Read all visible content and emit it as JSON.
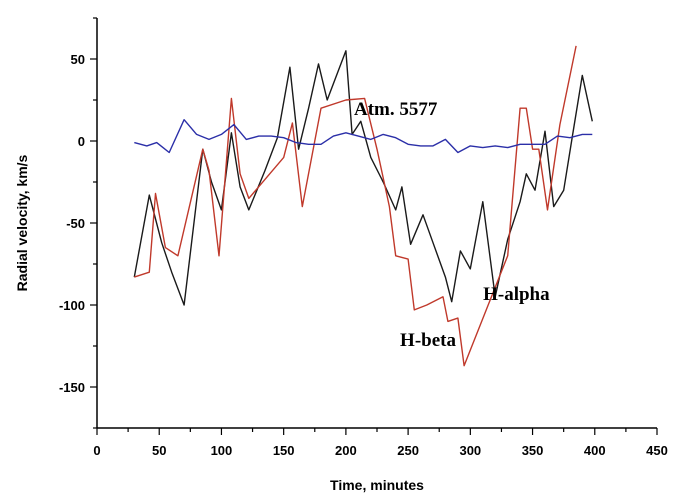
{
  "chart_data": {
    "type": "line",
    "title": "",
    "xlabel": "Time, minutes",
    "ylabel": "Radial velocity, km/s",
    "xlim": [
      0,
      450
    ],
    "ylim": [
      -175,
      75
    ],
    "xticks": [
      0,
      50,
      100,
      150,
      200,
      250,
      300,
      350,
      400,
      450
    ],
    "yticks": [
      -150,
      -100,
      -50,
      0,
      50
    ],
    "grid": false,
    "annotations": [
      {
        "text": "Atm. 5577",
        "x": 240,
        "y": 16
      },
      {
        "text": "H-alpha",
        "x": 337,
        "y": -97
      },
      {
        "text": "H-beta",
        "x": 266,
        "y": -125
      }
    ],
    "series": [
      {
        "name": "H-alpha",
        "color": "#1a1a1a",
        "x": [
          30,
          42,
          52,
          60,
          70,
          85,
          92,
          100,
          108,
          115,
          122,
          135,
          145,
          155,
          162,
          170,
          178,
          185,
          200,
          205,
          212,
          220,
          230,
          240,
          245,
          252,
          262,
          270,
          280,
          285,
          292,
          300,
          310,
          320,
          330,
          340,
          345,
          352,
          360,
          367,
          375,
          382,
          390,
          398
        ],
        "y": [
          -83,
          -33,
          -62,
          -80,
          -100,
          -5,
          -25,
          -42,
          5,
          -28,
          -42,
          -18,
          2,
          45,
          -5,
          20,
          47,
          25,
          55,
          4,
          12,
          -10,
          -25,
          -42,
          -28,
          -63,
          -45,
          -62,
          -83,
          -98,
          -67,
          -78,
          -37,
          -95,
          -60,
          -37,
          -20,
          -30,
          6,
          -40,
          -30,
          3,
          40,
          12
        ]
      },
      {
        "name": "H-beta",
        "color": "#c0392b",
        "x": [
          30,
          42,
          47,
          55,
          65,
          85,
          90,
          98,
          108,
          115,
          122,
          150,
          157,
          165,
          180,
          200,
          215,
          225,
          235,
          240,
          250,
          255,
          265,
          278,
          282,
          290,
          295,
          330,
          340,
          345,
          350,
          355,
          362,
          372,
          385
        ],
        "y": [
          -83,
          -80,
          -32,
          -65,
          -70,
          -5,
          -18,
          -70,
          26,
          -20,
          -35,
          -10,
          11,
          -40,
          20,
          25,
          26,
          -5,
          -40,
          -70,
          -72,
          -103,
          -100,
          -95,
          -110,
          -108,
          -137,
          -70,
          20,
          20,
          -5,
          -5,
          -42,
          10,
          58
        ]
      },
      {
        "name": "Atm. 5577",
        "color": "#2b2fa8",
        "x": [
          30,
          40,
          48,
          53,
          58,
          70,
          80,
          90,
          100,
          110,
          120,
          130,
          140,
          150,
          160,
          170,
          180,
          190,
          200,
          210,
          220,
          230,
          240,
          250,
          260,
          270,
          280,
          290,
          300,
          310,
          320,
          330,
          340,
          350,
          360,
          370,
          380,
          390,
          398
        ],
        "y": [
          -1,
          -3,
          -1,
          -4,
          -7,
          13,
          4,
          1,
          4,
          10,
          1,
          3,
          3,
          2,
          -1,
          -2,
          -2,
          3,
          5,
          3,
          1,
          4,
          2,
          -2,
          -3,
          -3,
          1,
          -7,
          -3,
          -4,
          -3,
          -4,
          -2,
          -2,
          -2,
          3,
          2,
          4,
          4
        ]
      }
    ]
  }
}
